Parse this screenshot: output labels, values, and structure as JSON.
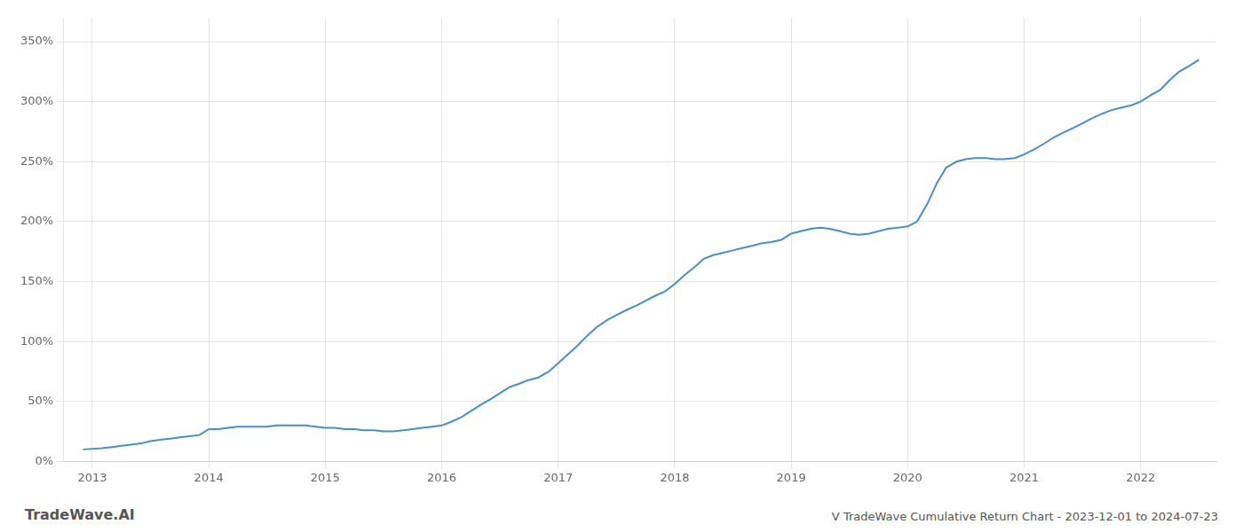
{
  "chart_data": {
    "type": "line",
    "x": [
      2012.92,
      2013.08,
      2013.17,
      2013.25,
      2013.33,
      2013.42,
      2013.5,
      2013.58,
      2013.67,
      2013.75,
      2013.83,
      2013.92,
      2014.0,
      2014.08,
      2014.17,
      2014.25,
      2014.33,
      2014.42,
      2014.5,
      2014.58,
      2014.67,
      2014.75,
      2014.83,
      2014.92,
      2015.0,
      2015.08,
      2015.17,
      2015.25,
      2015.33,
      2015.42,
      2015.5,
      2015.58,
      2015.67,
      2015.75,
      2015.83,
      2015.92,
      2016.0,
      2016.08,
      2016.17,
      2016.25,
      2016.33,
      2016.42,
      2016.5,
      2016.58,
      2016.67,
      2016.75,
      2016.83,
      2016.92,
      2017.0,
      2017.08,
      2017.17,
      2017.25,
      2017.33,
      2017.42,
      2017.5,
      2017.58,
      2017.67,
      2017.75,
      2017.83,
      2017.92,
      2018.0,
      2018.08,
      2018.17,
      2018.25,
      2018.33,
      2018.42,
      2018.5,
      2018.58,
      2018.67,
      2018.75,
      2018.83,
      2018.92,
      2019.0,
      2019.08,
      2019.17,
      2019.25,
      2019.33,
      2019.42,
      2019.5,
      2019.58,
      2019.67,
      2019.75,
      2019.83,
      2019.92,
      2020.0,
      2020.08,
      2020.17,
      2020.25,
      2020.33,
      2020.42,
      2020.5,
      2020.58,
      2020.67,
      2020.75,
      2020.83,
      2020.92,
      2021.0,
      2021.08,
      2021.17,
      2021.25,
      2021.33,
      2021.42,
      2021.5,
      2021.58,
      2021.67,
      2021.75,
      2021.83,
      2021.92,
      2022.0,
      2022.08,
      2022.17,
      2022.25,
      2022.33,
      2022.42,
      2022.5
    ],
    "values": [
      10,
      11,
      12,
      13,
      14,
      15,
      17,
      18,
      19,
      20,
      21,
      22,
      27,
      27,
      28,
      29,
      29,
      29,
      29,
      30,
      30,
      30,
      30,
      29,
      28,
      28,
      27,
      27,
      26,
      26,
      25,
      25,
      26,
      27,
      28,
      29,
      30,
      33,
      37,
      42,
      47,
      52,
      57,
      62,
      65,
      68,
      70,
      75,
      82,
      89,
      97,
      105,
      112,
      118,
      122,
      126,
      130,
      134,
      138,
      142,
      148,
      155,
      162,
      169,
      172,
      174,
      176,
      178,
      180,
      182,
      183,
      185,
      190,
      192,
      194,
      195,
      194,
      192,
      190,
      189,
      190,
      192,
      194,
      195,
      196,
      200,
      215,
      232,
      245,
      250,
      252,
      253,
      253,
      252,
      252,
      253,
      256,
      260,
      265,
      270,
      274,
      278,
      282,
      286,
      290,
      293,
      295,
      297,
      300,
      305,
      310,
      318,
      325,
      330,
      335
    ],
    "color": "#4a8fc4",
    "xlim": [
      2012.75,
      2022.65
    ],
    "xticks": [
      2013,
      2014,
      2015,
      2016,
      2017,
      2018,
      2019,
      2020,
      2021,
      2022
    ],
    "ylim": [
      0,
      370
    ],
    "yticks": [
      {
        "value": 0,
        "label": "0%"
      },
      {
        "value": 50,
        "label": "50%"
      },
      {
        "value": 100,
        "label": "100%"
      },
      {
        "value": 150,
        "label": "150%"
      },
      {
        "value": 200,
        "label": "200%"
      },
      {
        "value": 250,
        "label": "250%"
      },
      {
        "value": 300,
        "label": "300%"
      },
      {
        "value": 350,
        "label": "350%"
      }
    ],
    "grid": true,
    "annotations": [
      "TradeWave.AI",
      "V TradeWave Cumulative Return Chart - 2023-12-01 to 2024-07-23"
    ]
  }
}
